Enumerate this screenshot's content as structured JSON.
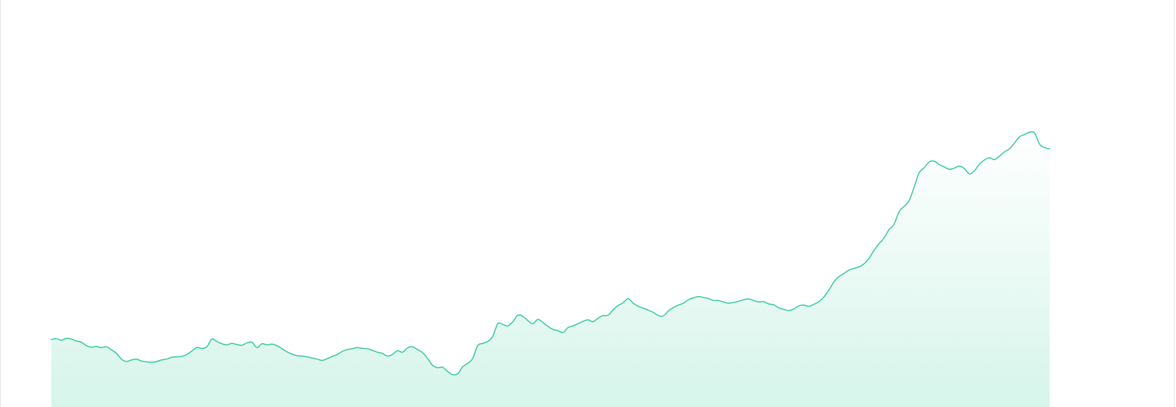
{
  "chart_data": {
    "type": "area",
    "title": "",
    "xlabel": "",
    "ylabel": "",
    "x_count": 200,
    "ylim": [
      0,
      100
    ],
    "grid": false,
    "legend": "none",
    "colors": {
      "line": "#2ec99a",
      "fill_top": "#ffffff",
      "fill_bottom": "#d6f5ea"
    },
    "series": [
      {
        "values": [
          17.5,
          17.7,
          17.3,
          17.8,
          17.6,
          17.1,
          16.8,
          15.9,
          15.5,
          15.7,
          15.4,
          15.6,
          14.8,
          13.9,
          12.4,
          11.8,
          12.2,
          12.4,
          11.9,
          11.7,
          11.6,
          11.8,
          12.2,
          12.4,
          12.9,
          13.0,
          13.1,
          13.6,
          14.5,
          15.4,
          15.2,
          15.6,
          17.6,
          17.0,
          16.4,
          16.1,
          16.5,
          16.2,
          16.0,
          16.6,
          16.8,
          15.4,
          16.4,
          16.1,
          16.3,
          15.9,
          15.1,
          14.3,
          13.7,
          13.3,
          13.2,
          13.0,
          12.7,
          12.4,
          12.1,
          12.5,
          13.1,
          13.6,
          14.4,
          14.9,
          15.1,
          15.4,
          15.2,
          15.1,
          14.7,
          14.2,
          13.9,
          13.2,
          13.6,
          14.6,
          14.2,
          15.3,
          15.6,
          14.9,
          14.1,
          12.6,
          10.8,
          10.2,
          10.3,
          9.2,
          8.4,
          8.6,
          10.4,
          11.3,
          12.6,
          15.9,
          16.5,
          17.0,
          18.3,
          21.6,
          21.4,
          21.0,
          22.1,
          23.8,
          23.5,
          22.4,
          21.6,
          22.7,
          21.9,
          20.9,
          20.1,
          19.8,
          19.3,
          20.6,
          21.0,
          21.6,
          22.2,
          22.6,
          22.1,
          23.0,
          23.7,
          23.8,
          25.2,
          26.3,
          27.0,
          28.1,
          26.9,
          26.1,
          25.6,
          25.1,
          24.5,
          23.7,
          23.6,
          24.9,
          25.8,
          26.4,
          26.9,
          27.8,
          28.3,
          28.6,
          28.4,
          28.1,
          27.6,
          27.6,
          27.2,
          26.9,
          27.1,
          27.4,
          27.8,
          28.0,
          27.6,
          27.2,
          27.3,
          26.7,
          26.5,
          25.7,
          25.3,
          25.0,
          25.4,
          26.2,
          26.4,
          26.1,
          26.6,
          27.3,
          28.5,
          30.3,
          32.4,
          33.8,
          34.6,
          35.5,
          35.9,
          36.3,
          37.1,
          38.5,
          40.6,
          42.3,
          43.8,
          46.0,
          47.4,
          50.6,
          52.0,
          53.5,
          57.0,
          60.7,
          62.0,
          63.5,
          63.7,
          62.8,
          62.2,
          61.6,
          61.9,
          62.4,
          61.8,
          60.4,
          61.2,
          62.9,
          64.0,
          64.6,
          64.1,
          65.0,
          66.1,
          66.9,
          68.4,
          70.0,
          70.6,
          71.2,
          71.0,
          68.1,
          67.2,
          66.9
        ]
      }
    ]
  }
}
